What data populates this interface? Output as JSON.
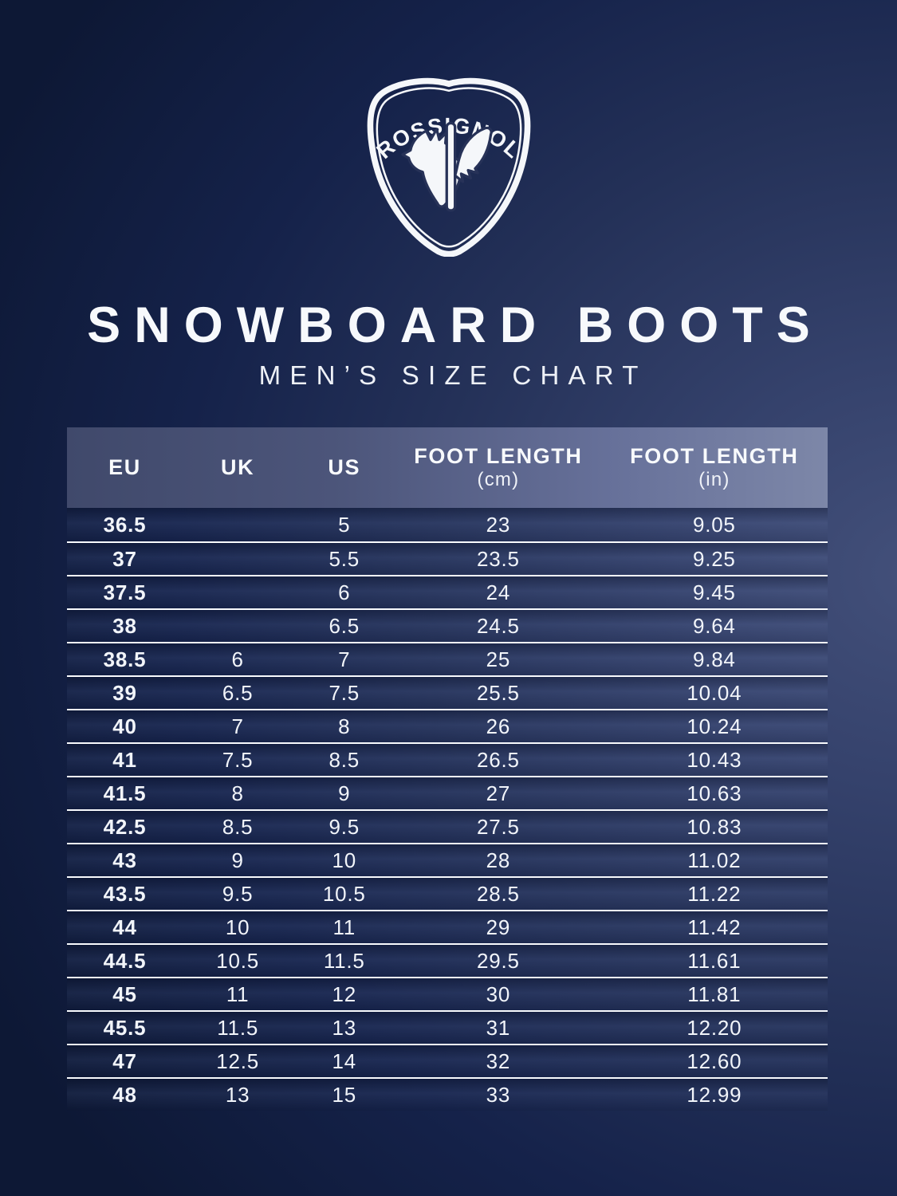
{
  "brand": {
    "logo_name": "rossignol-shield-logo",
    "logo_text": "ROSSIGNOL"
  },
  "header": {
    "title": "SNOWBOARD BOOTS",
    "subtitle": "MEN’S SIZE CHART"
  },
  "colors": {
    "background_dark_navy": "#0d1835",
    "background_light_slate": "#43507a",
    "header_band_left": "#40496b",
    "header_band_right": "#7d87a8",
    "text_white": "#f5f7fa",
    "separator_white": "#f8fafd"
  },
  "table": {
    "headers": [
      {
        "line1": "EU",
        "line2": ""
      },
      {
        "line1": "UK",
        "line2": ""
      },
      {
        "line1": "US",
        "line2": ""
      },
      {
        "line1": "FOOT LENGTH",
        "line2": "(cm)"
      },
      {
        "line1": "FOOT LENGTH",
        "line2": "(in)"
      }
    ],
    "rows": [
      [
        "36.5",
        "",
        "5",
        "23",
        "9.05"
      ],
      [
        "37",
        "",
        "5.5",
        "23.5",
        "9.25"
      ],
      [
        "37.5",
        "",
        "6",
        "24",
        "9.45"
      ],
      [
        "38",
        "",
        "6.5",
        "24.5",
        "9.64"
      ],
      [
        "38.5",
        "6",
        "7",
        "25",
        "9.84"
      ],
      [
        "39",
        "6.5",
        "7.5",
        "25.5",
        "10.04"
      ],
      [
        "40",
        "7",
        "8",
        "26",
        "10.24"
      ],
      [
        "41",
        "7.5",
        "8.5",
        "26.5",
        "10.43"
      ],
      [
        "41.5",
        "8",
        "9",
        "27",
        "10.63"
      ],
      [
        "42.5",
        "8.5",
        "9.5",
        "27.5",
        "10.83"
      ],
      [
        "43",
        "9",
        "10",
        "28",
        "11.02"
      ],
      [
        "43.5",
        "9.5",
        "10.5",
        "28.5",
        "11.22"
      ],
      [
        "44",
        "10",
        "11",
        "29",
        "11.42"
      ],
      [
        "44.5",
        "10.5",
        "11.5",
        "29.5",
        "11.61"
      ],
      [
        "45",
        "11",
        "12",
        "30",
        "11.81"
      ],
      [
        "45.5",
        "11.5",
        "13",
        "31",
        "12.20"
      ],
      [
        "47",
        "12.5",
        "14",
        "32",
        "12.60"
      ],
      [
        "48",
        "13",
        "15",
        "33",
        "12.99"
      ]
    ]
  },
  "chart_data": {
    "type": "table",
    "title": "SNOWBOARD BOOTS — MEN’S SIZE CHART",
    "columns": [
      "EU",
      "UK",
      "US",
      "FOOT LENGTH (cm)",
      "FOOT LENGTH (in)"
    ],
    "rows": [
      [
        "36.5",
        "",
        "5",
        "23",
        "9.05"
      ],
      [
        "37",
        "",
        "5.5",
        "23.5",
        "9.25"
      ],
      [
        "37.5",
        "",
        "6",
        "24",
        "9.45"
      ],
      [
        "38",
        "",
        "6.5",
        "24.5",
        "9.64"
      ],
      [
        "38.5",
        "6",
        "7",
        "25",
        "9.84"
      ],
      [
        "39",
        "6.5",
        "7.5",
        "25.5",
        "10.04"
      ],
      [
        "40",
        "7",
        "8",
        "26",
        "10.24"
      ],
      [
        "41",
        "7.5",
        "8.5",
        "26.5",
        "10.43"
      ],
      [
        "41.5",
        "8",
        "9",
        "27",
        "10.63"
      ],
      [
        "42.5",
        "8.5",
        "9.5",
        "27.5",
        "10.83"
      ],
      [
        "43",
        "9",
        "10",
        "28",
        "11.02"
      ],
      [
        "43.5",
        "9.5",
        "10.5",
        "28.5",
        "11.22"
      ],
      [
        "44",
        "10",
        "11",
        "29",
        "11.42"
      ],
      [
        "44.5",
        "10.5",
        "11.5",
        "29.5",
        "11.61"
      ],
      [
        "45",
        "11",
        "12",
        "30",
        "11.81"
      ],
      [
        "45.5",
        "11.5",
        "13",
        "31",
        "12.20"
      ],
      [
        "47",
        "12.5",
        "14",
        "32",
        "12.60"
      ],
      [
        "48",
        "13",
        "15",
        "33",
        "12.99"
      ]
    ]
  }
}
